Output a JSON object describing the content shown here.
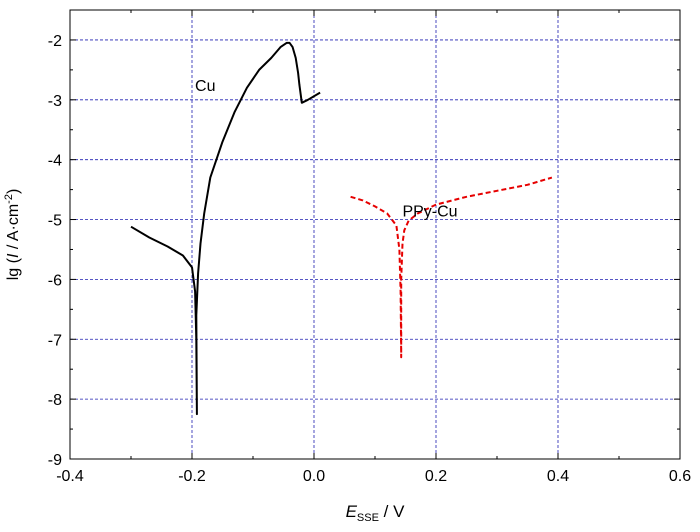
{
  "chart_data": {
    "type": "line",
    "title": "",
    "xlabel": {
      "italic": "E",
      "sub": "SSE",
      "rest": " / V"
    },
    "ylabel": {
      "pre": "lg (",
      "italic": "I",
      "mid": " / A·cm",
      "sup": "-2",
      "post": ")"
    },
    "xlim": [
      -0.4,
      0.6
    ],
    "ylim": [
      -9,
      -1.5
    ],
    "x_ticks": [
      -0.4,
      -0.2,
      0.0,
      0.2,
      0.4,
      0.6
    ],
    "x_tick_labels": [
      "-0.4",
      "-0.2",
      "0.0",
      "0.2",
      "0.4",
      "0.6"
    ],
    "y_ticks": [
      -9,
      -8,
      -7,
      -6,
      -5,
      -4,
      -3,
      -2
    ],
    "y_tick_labels": [
      "-9",
      "-8",
      "-7",
      "-6",
      "-5",
      "-4",
      "-3",
      "-2"
    ],
    "grid": true,
    "grid_color": "#1f1fb0",
    "series": [
      {
        "name": "Cu",
        "color": "#000000",
        "dash": "solid",
        "label_at": [
          -0.195,
          -2.85
        ],
        "x": [
          -0.3,
          -0.27,
          -0.24,
          -0.215,
          -0.2,
          -0.195,
          -0.193,
          -0.192,
          -0.193,
          -0.19,
          -0.186,
          -0.18,
          -0.17,
          -0.15,
          -0.13,
          -0.11,
          -0.09,
          -0.07,
          -0.055,
          -0.045,
          -0.04,
          -0.035,
          -0.03,
          -0.026,
          -0.024,
          -0.022,
          -0.02,
          -0.01,
          0.01
        ],
        "y": [
          -5.12,
          -5.3,
          -5.45,
          -5.6,
          -5.8,
          -6.2,
          -7.0,
          -8.25,
          -6.6,
          -5.9,
          -5.4,
          -4.9,
          -4.3,
          -3.7,
          -3.2,
          -2.8,
          -2.5,
          -2.3,
          -2.12,
          -2.05,
          -2.05,
          -2.12,
          -2.3,
          -2.55,
          -2.75,
          -2.9,
          -3.05,
          -3.0,
          -2.88
        ]
      },
      {
        "name": "PPy-Cu",
        "color": "#e60000",
        "dash": "dashed",
        "label_at": [
          0.145,
          -4.95
        ],
        "x": [
          0.06,
          0.08,
          0.1,
          0.12,
          0.135,
          0.14,
          0.142,
          0.143,
          0.143,
          0.145,
          0.148,
          0.155,
          0.17,
          0.2,
          0.25,
          0.3,
          0.35,
          0.39
        ],
        "y": [
          -4.62,
          -4.68,
          -4.78,
          -4.9,
          -5.1,
          -5.5,
          -6.2,
          -7.3,
          -6.0,
          -5.4,
          -5.18,
          -5.02,
          -4.9,
          -4.75,
          -4.62,
          -4.52,
          -4.42,
          -4.3
        ]
      }
    ]
  }
}
